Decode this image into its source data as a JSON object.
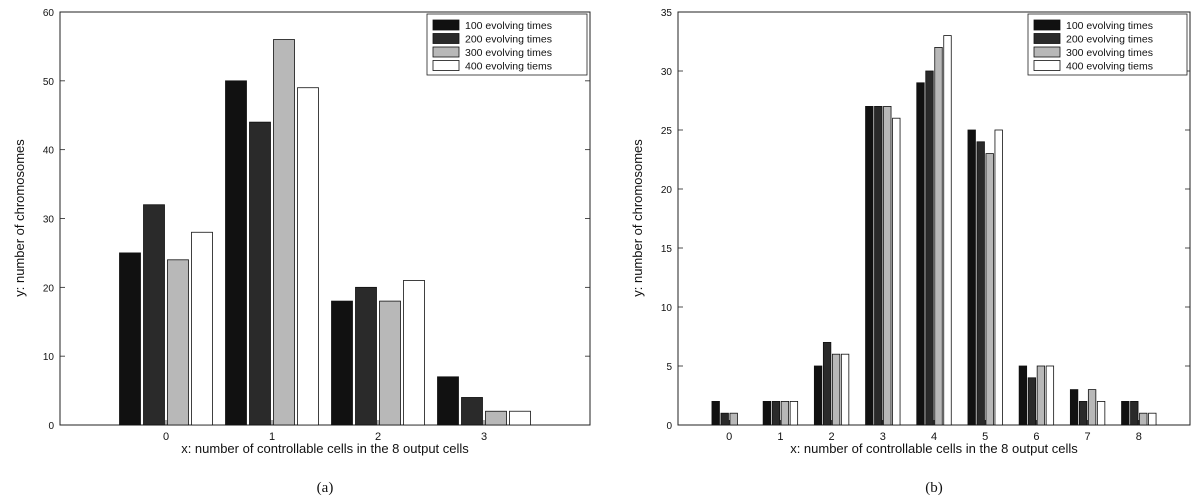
{
  "chart_data": [
    {
      "type": "bar",
      "caption": "(a)",
      "xlabel": "x: number of controllable cells in the 8 output cells",
      "ylabel": "y: number of chromosomes",
      "categories": [
        "0",
        "1",
        "2",
        "3"
      ],
      "ylim": [
        0,
        60
      ],
      "yticks": [
        0,
        10,
        20,
        30,
        40,
        50,
        60
      ],
      "legend_position": "top-right",
      "grid": false,
      "series": [
        {
          "name": "100 evolving times",
          "values": [
            25,
            50,
            18,
            7
          ],
          "fill": "#111111"
        },
        {
          "name": "200 evolving times",
          "values": [
            32,
            44,
            20,
            4
          ],
          "fill": "#2a2a2a"
        },
        {
          "name": "300 evolving times",
          "values": [
            24,
            56,
            18,
            2
          ],
          "fill": "#b8b8b8"
        },
        {
          "name": "400 evolving tiems",
          "values": [
            28,
            49,
            21,
            2
          ],
          "fill": "#ffffff"
        }
      ]
    },
    {
      "type": "bar",
      "caption": "(b)",
      "xlabel": "x: number of controllable cells in the 8 output cells",
      "ylabel": "y: number of chromosomes",
      "categories": [
        "0",
        "1",
        "2",
        "3",
        "4",
        "5",
        "6",
        "7",
        "8"
      ],
      "ylim": [
        0,
        35
      ],
      "yticks": [
        0,
        5,
        10,
        15,
        20,
        25,
        30,
        35
      ],
      "legend_position": "top-right",
      "grid": false,
      "series": [
        {
          "name": "100 evolving times",
          "values": [
            2,
            2,
            5,
            27,
            29,
            25,
            5,
            3,
            2
          ],
          "fill": "#111111"
        },
        {
          "name": "200 evolving times",
          "values": [
            1,
            2,
            7,
            27,
            30,
            24,
            4,
            2,
            2
          ],
          "fill": "#2a2a2a"
        },
        {
          "name": "300 evolving times",
          "values": [
            1,
            2,
            6,
            27,
            32,
            23,
            5,
            3,
            1
          ],
          "fill": "#b8b8b8"
        },
        {
          "name": "400 evolving tiems",
          "values": [
            0,
            2,
            6,
            26,
            33,
            25,
            5,
            2,
            1
          ],
          "fill": "#ffffff"
        }
      ]
    }
  ]
}
